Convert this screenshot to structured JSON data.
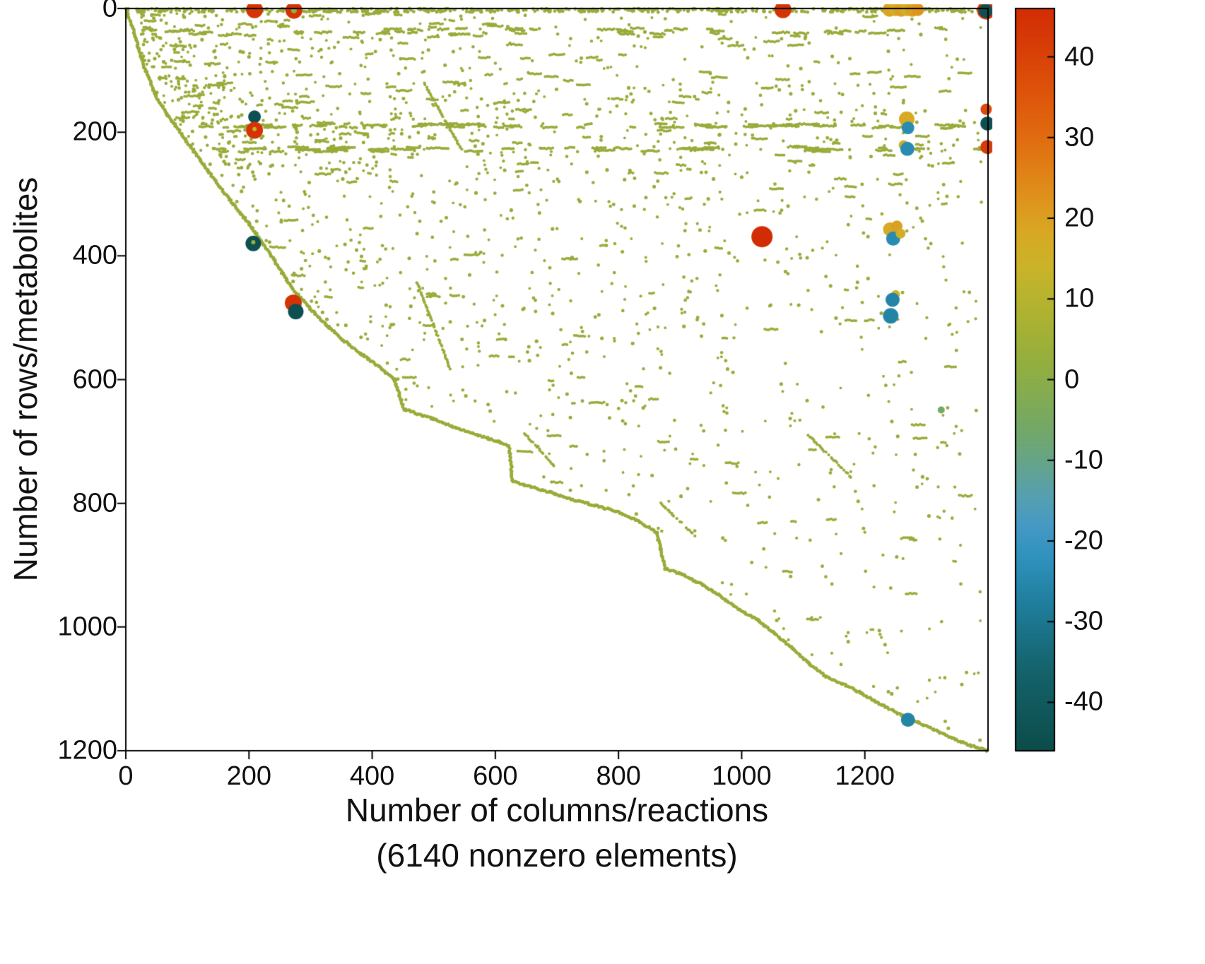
{
  "figure": {
    "ylabel": "Number of rows/metabolites",
    "xlabel_line1": "Number of columns/reactions",
    "xlabel_line2": "(6140 nonzero elements)"
  },
  "chart_data": {
    "type": "scatter",
    "title": "",
    "xlabel": "Number of columns/reactions (6140 nonzero elements)",
    "ylabel": "Number of rows/metabolites",
    "nonzero_elements": 6140,
    "xlim": [
      0,
      1400
    ],
    "ylim": [
      0,
      1200
    ],
    "y_axis_reversed": true,
    "x_ticks": [
      0,
      200,
      400,
      600,
      800,
      1000,
      1200
    ],
    "y_ticks": [
      0,
      200,
      400,
      600,
      800,
      1000,
      1200
    ],
    "grid": false,
    "marker_color_default": "#99ab39",
    "colorbar": {
      "min": -46,
      "max": 46,
      "ticks": [
        40,
        30,
        20,
        10,
        0,
        -10,
        -20,
        -30,
        -40
      ],
      "stops": [
        [
          -46,
          "#0c4c4a"
        ],
        [
          -36,
          "#14626b"
        ],
        [
          -28,
          "#1f7d9b"
        ],
        [
          -22,
          "#2f92bd"
        ],
        [
          -18,
          "#4699c4"
        ],
        [
          -14,
          "#57a0ad"
        ],
        [
          -10,
          "#66a487"
        ],
        [
          -6,
          "#74a867"
        ],
        [
          -2,
          "#83ab52"
        ],
        [
          2,
          "#93ae3f"
        ],
        [
          6,
          "#a4b135"
        ],
        [
          10,
          "#b6b32e"
        ],
        [
          14,
          "#cab32a"
        ],
        [
          18,
          "#d8a924"
        ],
        [
          22,
          "#de951d"
        ],
        [
          26,
          "#e08016"
        ],
        [
          30,
          "#e06c10"
        ],
        [
          36,
          "#dd520a"
        ],
        [
          42,
          "#d63b06"
        ],
        [
          46,
          "#d22c04"
        ]
      ]
    },
    "envelope": [
      [
        0,
        0
      ],
      [
        14,
        40
      ],
      [
        30,
        95
      ],
      [
        48,
        140
      ],
      [
        66,
        170
      ],
      [
        86,
        196
      ],
      [
        104,
        222
      ],
      [
        128,
        255
      ],
      [
        152,
        288
      ],
      [
        176,
        318
      ],
      [
        200,
        348
      ],
      [
        224,
        382
      ],
      [
        244,
        412
      ],
      [
        262,
        440
      ],
      [
        278,
        462
      ],
      [
        300,
        486
      ],
      [
        326,
        512
      ],
      [
        354,
        537
      ],
      [
        384,
        560
      ],
      [
        412,
        580
      ],
      [
        436,
        600
      ],
      [
        452,
        648
      ],
      [
        470,
        654
      ],
      [
        500,
        664
      ],
      [
        536,
        678
      ],
      [
        572,
        690
      ],
      [
        604,
        700
      ],
      [
        622,
        708
      ],
      [
        628,
        764
      ],
      [
        652,
        772
      ],
      [
        688,
        782
      ],
      [
        724,
        794
      ],
      [
        760,
        803
      ],
      [
        796,
        813
      ],
      [
        832,
        828
      ],
      [
        862,
        848
      ],
      [
        876,
        906
      ],
      [
        902,
        914
      ],
      [
        936,
        932
      ],
      [
        962,
        948
      ],
      [
        996,
        972
      ],
      [
        1028,
        990
      ],
      [
        1052,
        1010
      ],
      [
        1080,
        1032
      ],
      [
        1108,
        1058
      ],
      [
        1136,
        1080
      ],
      [
        1164,
        1092
      ],
      [
        1196,
        1108
      ],
      [
        1228,
        1126
      ],
      [
        1258,
        1142
      ],
      [
        1286,
        1154
      ],
      [
        1312,
        1166
      ],
      [
        1342,
        1180
      ],
      [
        1372,
        1192
      ],
      [
        1400,
        1200
      ]
    ],
    "special_points": [
      {
        "x": 209,
        "y": 2,
        "v": 44,
        "r": 12
      },
      {
        "x": 273,
        "y": 3,
        "v": 44,
        "r": 12
      },
      {
        "x": 273,
        "y": 3,
        "v": 2,
        "r": 4
      },
      {
        "x": 1067,
        "y": 2,
        "v": 44,
        "r": 12
      },
      {
        "x": 1240,
        "y": 2,
        "v": 19,
        "r": 10
      },
      {
        "x": 1250,
        "y": 1,
        "v": 17,
        "r": 10
      },
      {
        "x": 1259,
        "y": 2,
        "v": 20,
        "r": 10
      },
      {
        "x": 1268,
        "y": 1,
        "v": 16,
        "r": 10
      },
      {
        "x": 1277,
        "y": 2,
        "v": 20,
        "r": 10
      },
      {
        "x": 1286,
        "y": 2,
        "v": 22,
        "r": 9
      },
      {
        "x": 1397,
        "y": 3,
        "v": 44,
        "r": 13
      },
      {
        "x": 1396,
        "y": 4,
        "v": -44,
        "r": 10
      },
      {
        "x": 209,
        "y": 175,
        "v": -44,
        "r": 9
      },
      {
        "x": 209,
        "y": 197,
        "v": 44,
        "r": 12
      },
      {
        "x": 209,
        "y": 195,
        "v": 14,
        "r": 3
      },
      {
        "x": 1268,
        "y": 179,
        "v": 18,
        "r": 11
      },
      {
        "x": 1270,
        "y": 193,
        "v": -24,
        "r": 9
      },
      {
        "x": 1397,
        "y": 163,
        "v": 38,
        "r": 8
      },
      {
        "x": 1399,
        "y": 186,
        "v": -44,
        "r": 10
      },
      {
        "x": 1263,
        "y": 221,
        "v": 16,
        "r": 7
      },
      {
        "x": 1269,
        "y": 227,
        "v": -24,
        "r": 10
      },
      {
        "x": 1399,
        "y": 224,
        "v": 42,
        "r": 10
      },
      {
        "x": 207,
        "y": 380,
        "v": -44,
        "r": 11
      },
      {
        "x": 207,
        "y": 378,
        "v": 4,
        "r": 3
      },
      {
        "x": 1033,
        "y": 369,
        "v": 46,
        "r": 15
      },
      {
        "x": 1241,
        "y": 357,
        "v": 18,
        "r": 10
      },
      {
        "x": 1252,
        "y": 352,
        "v": 20,
        "r": 8
      },
      {
        "x": 1246,
        "y": 372,
        "v": -24,
        "r": 10
      },
      {
        "x": 1258,
        "y": 364,
        "v": 16,
        "r": 7
      },
      {
        "x": 272,
        "y": 476,
        "v": 44,
        "r": 12
      },
      {
        "x": 276,
        "y": 490,
        "v": -44,
        "r": 11
      },
      {
        "x": 1250,
        "y": 462,
        "v": 14,
        "r": 6
      },
      {
        "x": 1245,
        "y": 471,
        "v": -26,
        "r": 10
      },
      {
        "x": 1242,
        "y": 497,
        "v": -26,
        "r": 11
      },
      {
        "x": 1324,
        "y": 649,
        "v": -6,
        "r": 5
      },
      {
        "x": 1270,
        "y": 1150,
        "v": -26,
        "r": 10
      }
    ],
    "sparse_pattern": {
      "seed": 1337,
      "top_row": {
        "y_max": 6,
        "count": 520
      },
      "second_row": {
        "y": 38,
        "dash_count": 40
      },
      "band_rows": [
        {
          "y": 190,
          "dash_count": 55
        },
        {
          "y": 228,
          "dash_count": 45
        }
      ],
      "scatter_count": 1500,
      "dash_count": 240,
      "diagonal_runs": [
        [
          484,
          120,
          545,
          228
        ],
        [
          473,
          443,
          530,
          591
        ],
        [
          648,
          688,
          700,
          744
        ],
        [
          868,
          800,
          924,
          852
        ],
        [
          1108,
          690,
          1180,
          760
        ]
      ]
    }
  }
}
